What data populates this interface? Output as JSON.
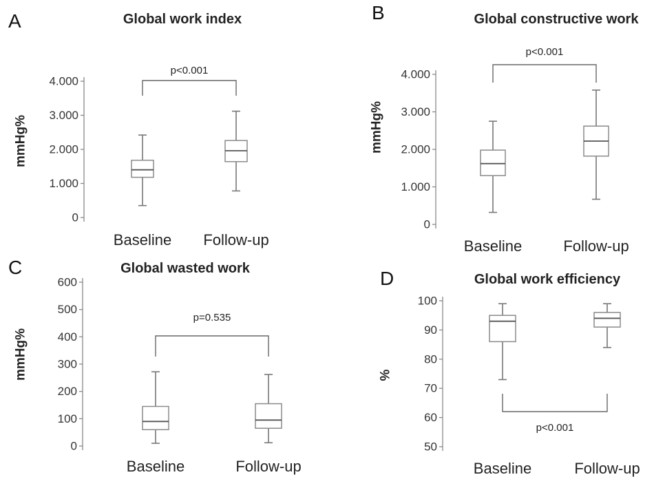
{
  "chart_data": [
    {
      "panel": "A",
      "type": "box",
      "title": "Global work index",
      "ylabel": "mmHg%",
      "ylim": [
        0,
        4000
      ],
      "yticks": [
        0,
        1000,
        2000,
        3000,
        4000
      ],
      "ytick_labels": [
        "0",
        "1.000",
        "2.000",
        "3.000",
        "4.000"
      ],
      "categories": [
        "Baseline",
        "Follow-up"
      ],
      "boxes": [
        {
          "min": 350,
          "q1": 1180,
          "median": 1400,
          "q3": 1680,
          "max": 2420
        },
        {
          "min": 780,
          "q1": 1640,
          "median": 1960,
          "q3": 2260,
          "max": 3120
        }
      ],
      "annotation": "p<0.001",
      "bracket_position": "top"
    },
    {
      "panel": "B",
      "type": "box",
      "title": "Global constructive work",
      "ylabel": "mmHg%",
      "ylim": [
        0,
        4000
      ],
      "yticks": [
        0,
        1000,
        2000,
        3000,
        4000
      ],
      "ytick_labels": [
        "0",
        "1.000",
        "2.000",
        "3.000",
        "4.000"
      ],
      "categories": [
        "Baseline",
        "Follow-up"
      ],
      "boxes": [
        {
          "min": 320,
          "q1": 1300,
          "median": 1620,
          "q3": 1980,
          "max": 2750
        },
        {
          "min": 670,
          "q1": 1820,
          "median": 2220,
          "q3": 2620,
          "max": 3580
        }
      ],
      "annotation": "p<0.001",
      "bracket_position": "top"
    },
    {
      "panel": "C",
      "type": "box",
      "title": "Global wasted work",
      "ylabel": "mmHg%",
      "ylim": [
        0,
        600
      ],
      "yticks": [
        0,
        100,
        200,
        300,
        400,
        500,
        600
      ],
      "ytick_labels": [
        "0",
        "100",
        "200",
        "300",
        "400",
        "500",
        "600"
      ],
      "categories": [
        "Baseline",
        "Follow-up"
      ],
      "boxes": [
        {
          "min": 10,
          "q1": 60,
          "median": 90,
          "q3": 145,
          "max": 272
        },
        {
          "min": 12,
          "q1": 65,
          "median": 95,
          "q3": 155,
          "max": 262
        }
      ],
      "annotation": "p=0.535",
      "bracket_position": "top"
    },
    {
      "panel": "D",
      "type": "box",
      "title": "Global work efficiency",
      "ylabel": "%",
      "ylim": [
        50,
        100
      ],
      "yticks": [
        50,
        60,
        70,
        80,
        90,
        100
      ],
      "ytick_labels": [
        "50",
        "60",
        "70",
        "80",
        "90",
        "100"
      ],
      "categories": [
        "Baseline",
        "Follow-up"
      ],
      "boxes": [
        {
          "min": 73,
          "q1": 86,
          "median": 93,
          "q3": 95,
          "max": 99
        },
        {
          "min": 84,
          "q1": 91,
          "median": 94,
          "q3": 96,
          "max": 99
        }
      ],
      "annotation": "p<0.001",
      "bracket_position": "bottom"
    }
  ]
}
